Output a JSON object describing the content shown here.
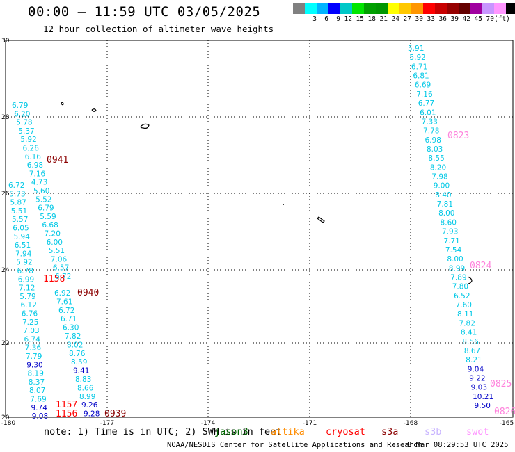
{
  "header": {
    "title": "00:00 – 11:59 UTC 03/05/2025",
    "subtitle": "12 hour collection of altimeter wave heights"
  },
  "legend": {
    "colors": [
      "#808080",
      "#00ffff",
      "#00b4ff",
      "#0000ff",
      "#00c8c8",
      "#00e600",
      "#00a000",
      "#009600",
      "#ffff00",
      "#ffc800",
      "#ff9600",
      "#ff0000",
      "#c80000",
      "#960000",
      "#640000",
      "#a000a0",
      "#c896ff",
      "#ff96ff",
      "#000000"
    ],
    "labels": [
      {
        "i": 1,
        "t": "3"
      },
      {
        "i": 2,
        "t": "6"
      },
      {
        "i": 3,
        "t": "9"
      },
      {
        "i": 4,
        "t": "12"
      },
      {
        "i": 5,
        "t": "15"
      },
      {
        "i": 6,
        "t": "18"
      },
      {
        "i": 7,
        "t": "21"
      },
      {
        "i": 8,
        "t": "24"
      },
      {
        "i": 9,
        "t": "27"
      },
      {
        "i": 10,
        "t": "30"
      },
      {
        "i": 11,
        "t": "33"
      },
      {
        "i": 12,
        "t": "36"
      },
      {
        "i": 13,
        "t": "39"
      },
      {
        "i": 14,
        "t": "42"
      },
      {
        "i": 15,
        "t": "45"
      },
      {
        "i": 16,
        "t": "70"
      },
      {
        "i": 17,
        "t": "(ft)"
      }
    ]
  },
  "axes": {
    "lon_labels": [
      "-180",
      "-177",
      "-174",
      "-171",
      "-168",
      "-165"
    ],
    "lat_labels": [
      "30",
      "28",
      "26",
      "24",
      "22",
      "20"
    ]
  },
  "colors": {
    "cyan": "#00c8e6",
    "blue": "#0000c8",
    "darkred": "#8b0000",
    "red": "#ff0000",
    "pink": "#ff82dc"
  },
  "tracks": {
    "west1": [
      {
        "v": "6.79",
        "c": "cyan"
      },
      {
        "v": "6.20",
        "c": "cyan"
      },
      {
        "v": "5.78",
        "c": "cyan"
      },
      {
        "v": "5.37",
        "c": "cyan"
      },
      {
        "v": "5.92",
        "c": "cyan"
      },
      {
        "v": "6.26",
        "c": "cyan"
      },
      {
        "v": "6.16",
        "c": "cyan"
      },
      {
        "v": "6.98",
        "c": "cyan"
      },
      {
        "v": "7.16",
        "c": "cyan"
      },
      {
        "v": "4.73",
        "c": "cyan"
      },
      {
        "v": "5.60",
        "c": "cyan"
      },
      {
        "v": "5.52",
        "c": "cyan"
      },
      {
        "v": "6.79",
        "c": "cyan"
      },
      {
        "v": "5.59",
        "c": "cyan"
      },
      {
        "v": "6.68",
        "c": "cyan"
      },
      {
        "v": "7.20",
        "c": "cyan"
      },
      {
        "v": "6.00",
        "c": "cyan"
      },
      {
        "v": "5.51",
        "c": "cyan"
      },
      {
        "v": "7.06",
        "c": "cyan"
      },
      {
        "v": "6.57",
        "c": "cyan"
      },
      {
        "v": "6.72",
        "c": "cyan"
      }
    ],
    "west2": [
      {
        "v": "6.72",
        "c": "cyan"
      },
      {
        "v": "5.73",
        "c": "cyan"
      },
      {
        "v": "5.87",
        "c": "cyan"
      },
      {
        "v": "5.51",
        "c": "cyan"
      },
      {
        "v": "5.57",
        "c": "cyan"
      },
      {
        "v": "6.05",
        "c": "cyan"
      },
      {
        "v": "5.94",
        "c": "cyan"
      },
      {
        "v": "6.51",
        "c": "cyan"
      },
      {
        "v": "7.94",
        "c": "cyan"
      },
      {
        "v": "5.92",
        "c": "cyan"
      },
      {
        "v": "6.78",
        "c": "cyan"
      },
      {
        "v": "6.99",
        "c": "cyan"
      },
      {
        "v": "7.12",
        "c": "cyan"
      },
      {
        "v": "5.79",
        "c": "cyan"
      },
      {
        "v": "6.12",
        "c": "cyan"
      },
      {
        "v": "6.76",
        "c": "cyan"
      },
      {
        "v": "7.25",
        "c": "cyan"
      },
      {
        "v": "7.03",
        "c": "cyan"
      },
      {
        "v": "6.74",
        "c": "cyan"
      },
      {
        "v": "7.36",
        "c": "cyan"
      },
      {
        "v": "7.79",
        "c": "cyan"
      },
      {
        "v": "9.30",
        "c": "blue"
      },
      {
        "v": "8.19",
        "c": "cyan"
      },
      {
        "v": "8.37",
        "c": "cyan"
      },
      {
        "v": "8.07",
        "c": "cyan"
      },
      {
        "v": "7.69",
        "c": "cyan"
      },
      {
        "v": "9.74",
        "c": "blue"
      },
      {
        "v": "9.08",
        "c": "blue"
      }
    ],
    "west3": [
      {
        "v": "6.92",
        "c": "cyan"
      },
      {
        "v": "7.61",
        "c": "cyan"
      },
      {
        "v": "6.72",
        "c": "cyan"
      },
      {
        "v": "6.71",
        "c": "cyan"
      },
      {
        "v": "6.30",
        "c": "cyan"
      },
      {
        "v": "7.82",
        "c": "cyan"
      },
      {
        "v": "8.02",
        "c": "cyan"
      },
      {
        "v": "8.76",
        "c": "cyan"
      },
      {
        "v": "8.59",
        "c": "cyan"
      },
      {
        "v": "9.41",
        "c": "blue"
      },
      {
        "v": "8.83",
        "c": "cyan"
      },
      {
        "v": "8.66",
        "c": "cyan"
      },
      {
        "v": "8.99",
        "c": "cyan"
      },
      {
        "v": "9.26",
        "c": "blue"
      },
      {
        "v": "9.28",
        "c": "blue"
      }
    ],
    "east": [
      {
        "v": "5.91",
        "c": "cyan"
      },
      {
        "v": "5.92",
        "c": "cyan"
      },
      {
        "v": "6.71",
        "c": "cyan"
      },
      {
        "v": "6.81",
        "c": "cyan"
      },
      {
        "v": "6.69",
        "c": "cyan"
      },
      {
        "v": "7.16",
        "c": "cyan"
      },
      {
        "v": "6.77",
        "c": "cyan"
      },
      {
        "v": "6.01",
        "c": "cyan"
      },
      {
        "v": "7.33",
        "c": "cyan"
      },
      {
        "v": "7.78",
        "c": "cyan"
      },
      {
        "v": "6.98",
        "c": "cyan"
      },
      {
        "v": "8.03",
        "c": "cyan"
      },
      {
        "v": "8.55",
        "c": "cyan"
      },
      {
        "v": "8.20",
        "c": "cyan"
      },
      {
        "v": "7.98",
        "c": "cyan"
      },
      {
        "v": "9.00",
        "c": "cyan"
      },
      {
        "v": "8.40",
        "c": "cyan"
      },
      {
        "v": "7.81",
        "c": "cyan"
      },
      {
        "v": "8.00",
        "c": "cyan"
      },
      {
        "v": "8.60",
        "c": "cyan"
      },
      {
        "v": "7.93",
        "c": "cyan"
      },
      {
        "v": "7.71",
        "c": "cyan"
      },
      {
        "v": "7.54",
        "c": "cyan"
      },
      {
        "v": "8.00",
        "c": "cyan"
      },
      {
        "v": "8.99",
        "c": "cyan"
      },
      {
        "v": "7.89",
        "c": "cyan"
      },
      {
        "v": "7.80",
        "c": "cyan"
      },
      {
        "v": "6.52",
        "c": "cyan"
      },
      {
        "v": "7.60",
        "c": "cyan"
      },
      {
        "v": "8.11",
        "c": "cyan"
      },
      {
        "v": "7.82",
        "c": "cyan"
      },
      {
        "v": "8.41",
        "c": "cyan"
      },
      {
        "v": "8.56",
        "c": "cyan"
      },
      {
        "v": "8.67",
        "c": "cyan"
      },
      {
        "v": "8.21",
        "c": "cyan"
      },
      {
        "v": "9.04",
        "c": "blue"
      },
      {
        "v": "9.22",
        "c": "blue"
      },
      {
        "v": "9.03",
        "c": "blue"
      },
      {
        "v": "10.21",
        "c": "blue"
      },
      {
        "v": "9.50",
        "c": "blue"
      }
    ]
  },
  "time_labels": [
    {
      "t": "0941",
      "c": "darkred"
    },
    {
      "t": "1158",
      "c": "red"
    },
    {
      "t": "0940",
      "c": "darkred"
    },
    {
      "t": "1157",
      "c": "red"
    },
    {
      "t": "1156",
      "c": "red"
    },
    {
      "t": "0939",
      "c": "darkred"
    },
    {
      "t": "0823",
      "c": "pink"
    },
    {
      "t": "0824",
      "c": "pink"
    },
    {
      "t": "0825",
      "c": "pink"
    },
    {
      "t": "0826",
      "c": "pink"
    }
  ],
  "note": "note: 1) Time is in UTC; 2) SWH is in feet",
  "satellites": [
    {
      "name": "jason3",
      "color": "#006400"
    },
    {
      "name": "altika",
      "color": "#ff8c00"
    },
    {
      "name": "cryosat",
      "color": "#ff0000"
    },
    {
      "name": "s3a",
      "color": "#8b0000"
    },
    {
      "name": "s3b",
      "color": "#c8b4ff"
    },
    {
      "name": "swot",
      "color": "#ff96ff"
    }
  ],
  "footer": {
    "left": "NOAA/NESDIS Center for Satellite Applications and Research",
    "right": "8 Mar 08:29:53 UTC 2025"
  }
}
